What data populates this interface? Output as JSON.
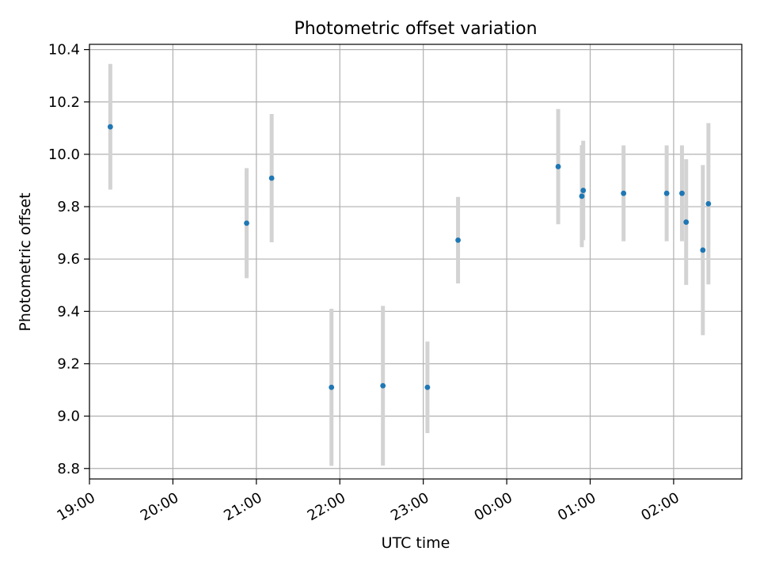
{
  "chart_data": {
    "type": "scatter",
    "title": "Photometric offset variation",
    "xlabel": "UTC time",
    "ylabel": "Photometric offset",
    "x_axis": {
      "start": "19:00",
      "end": "02:49",
      "ticks": [
        "19:00",
        "20:00",
        "21:00",
        "22:00",
        "23:00",
        "00:00",
        "01:00",
        "02:00"
      ]
    },
    "y_axis": {
      "range": [
        8.76,
        10.42
      ],
      "ticks": [
        "8.8",
        "9.0",
        "9.2",
        "9.4",
        "9.6",
        "9.8",
        "10.0",
        "10.2",
        "10.4"
      ]
    },
    "grid": true,
    "marker_color": "#1f77b4",
    "errorbar_color": "#d3d3d3",
    "points": [
      {
        "time": "19:15",
        "y": 10.105,
        "err": 0.24
      },
      {
        "time": "20:53",
        "y": 9.737,
        "err": 0.21
      },
      {
        "time": "21:11",
        "y": 9.909,
        "err": 0.245
      },
      {
        "time": "21:54",
        "y": 9.11,
        "err": 0.3
      },
      {
        "time": "22:31",
        "y": 9.116,
        "err": 0.305
      },
      {
        "time": "23:03",
        "y": 9.11,
        "err": 0.175
      },
      {
        "time": "23:25",
        "y": 9.672,
        "err": 0.165
      },
      {
        "time": "00:37",
        "y": 9.953,
        "err": 0.22
      },
      {
        "time": "00:54",
        "y": 9.84,
        "err": 0.195
      },
      {
        "time": "00:55",
        "y": 9.862,
        "err": 0.19
      },
      {
        "time": "01:24",
        "y": 9.851,
        "err": 0.183
      },
      {
        "time": "01:55",
        "y": 9.851,
        "err": 0.183
      },
      {
        "time": "02:06",
        "y": 9.851,
        "err": 0.183
      },
      {
        "time": "02:09",
        "y": 9.741,
        "err": 0.24
      },
      {
        "time": "02:21",
        "y": 9.634,
        "err": 0.325
      },
      {
        "time": "02:25",
        "y": 9.811,
        "err": 0.308
      }
    ]
  }
}
